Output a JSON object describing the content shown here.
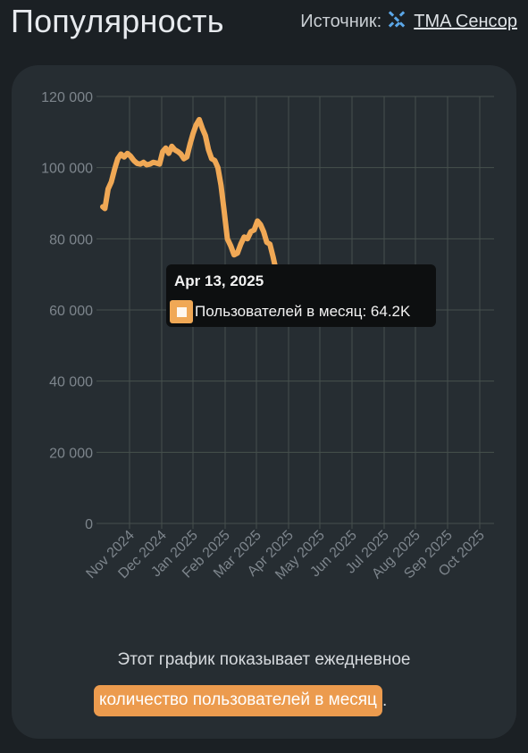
{
  "header": {
    "title": "Популярность",
    "source_label": "Источник:",
    "source_link": "TMA Сенсор"
  },
  "colors": {
    "background": "#1b2024",
    "card": "#262d32",
    "line": "#f0a855",
    "accent": "#ec9b4e",
    "grid": "#46504d"
  },
  "tooltip": {
    "date": "Apr 13, 2025",
    "label": "Пользователей в месяц: 64.2K"
  },
  "caption": {
    "line1": "Этот график показывает ежедневное",
    "highlight": "количество пользователей в месяц",
    "suffix": "."
  },
  "chart_data": {
    "type": "line",
    "title": "",
    "xlabel": "",
    "ylabel": "",
    "ylim": [
      0,
      120000
    ],
    "y_ticks": [
      "0",
      "20 000",
      "40 000",
      "60 000",
      "80 000",
      "100 000",
      "120 000"
    ],
    "x_ticks": [
      "Nov 2024",
      "Dec 2024",
      "Jan 2025",
      "Feb 2025",
      "Mar 2025",
      "Apr 2025",
      "May 2025",
      "Jun 2025",
      "Jul 2025",
      "Aug 2025",
      "Sep 2025",
      "Oct 2025"
    ],
    "grid": true,
    "series": [
      {
        "name": "Пользователей в месяц",
        "x": [
          "2024-10-07",
          "2024-10-09",
          "2024-10-12",
          "2024-10-15",
          "2024-10-18",
          "2024-10-21",
          "2024-10-24",
          "2024-10-27",
          "2024-10-30",
          "2024-11-02",
          "2024-11-05",
          "2024-11-08",
          "2024-11-11",
          "2024-11-14",
          "2024-11-17",
          "2024-11-20",
          "2024-11-23",
          "2024-11-26",
          "2024-11-29",
          "2024-12-02",
          "2024-12-05",
          "2024-12-08",
          "2024-12-11",
          "2024-12-14",
          "2024-12-17",
          "2024-12-20",
          "2024-12-23",
          "2024-12-26",
          "2024-12-29",
          "2025-01-01",
          "2025-01-04",
          "2025-01-07",
          "2025-01-10",
          "2025-01-13",
          "2025-01-16",
          "2025-01-19",
          "2025-01-22",
          "2025-01-25",
          "2025-01-28",
          "2025-01-31",
          "2025-02-03",
          "2025-02-06",
          "2025-02-09",
          "2025-02-12",
          "2025-02-15",
          "2025-02-18",
          "2025-02-21",
          "2025-02-24",
          "2025-02-27",
          "2025-03-02",
          "2025-03-05",
          "2025-03-08",
          "2025-03-11",
          "2025-03-14",
          "2025-03-17",
          "2025-03-20",
          "2025-03-23",
          "2025-03-26",
          "2025-03-29",
          "2025-04-01",
          "2025-04-04",
          "2025-04-07",
          "2025-04-10",
          "2025-04-13"
        ],
        "values": [
          89000,
          88500,
          94000,
          96000,
          99500,
          102500,
          103800,
          103000,
          104000,
          103200,
          102000,
          101200,
          101000,
          101500,
          100800,
          101000,
          101500,
          101300,
          101000,
          104500,
          105500,
          104000,
          106000,
          105000,
          104500,
          103800,
          102500,
          103000,
          106500,
          109500,
          112000,
          113500,
          111000,
          109000,
          105000,
          102500,
          102000,
          100000,
          95000,
          88000,
          80000,
          78000,
          75500,
          76000,
          78500,
          80500,
          80000,
          82000,
          82500,
          85000,
          84000,
          82000,
          79000,
          78500,
          75000,
          71000,
          68000,
          64200,
          64200,
          64200,
          64200,
          64200,
          64200,
          64200
        ]
      }
    ]
  }
}
